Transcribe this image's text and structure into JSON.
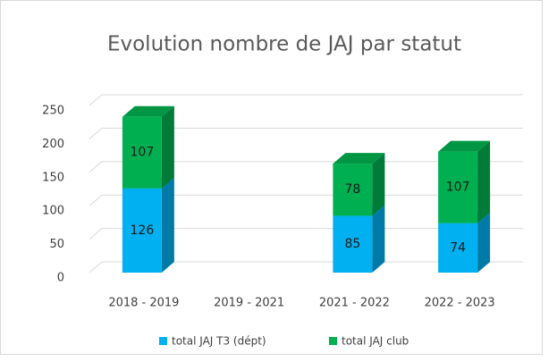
{
  "chart_data": {
    "type": "bar3d-stacked",
    "title": "Evolution nombre de JAJ par statut",
    "categories": [
      "2018 - 2019",
      "2019 - 2021",
      "2021 - 2022",
      "2022 - 2023"
    ],
    "series": [
      {
        "name": "total JAJ T3 (dépt)",
        "color": "#00b0f0",
        "values": [
          126,
          null,
          85,
          74
        ]
      },
      {
        "name": "total JAJ club",
        "color": "#00b050",
        "values": [
          107,
          null,
          78,
          107
        ]
      }
    ],
    "ylim": [
      0,
      250
    ],
    "yticks": [
      0,
      50,
      100,
      150,
      200,
      250
    ],
    "grid": true,
    "legend": "bottom"
  }
}
